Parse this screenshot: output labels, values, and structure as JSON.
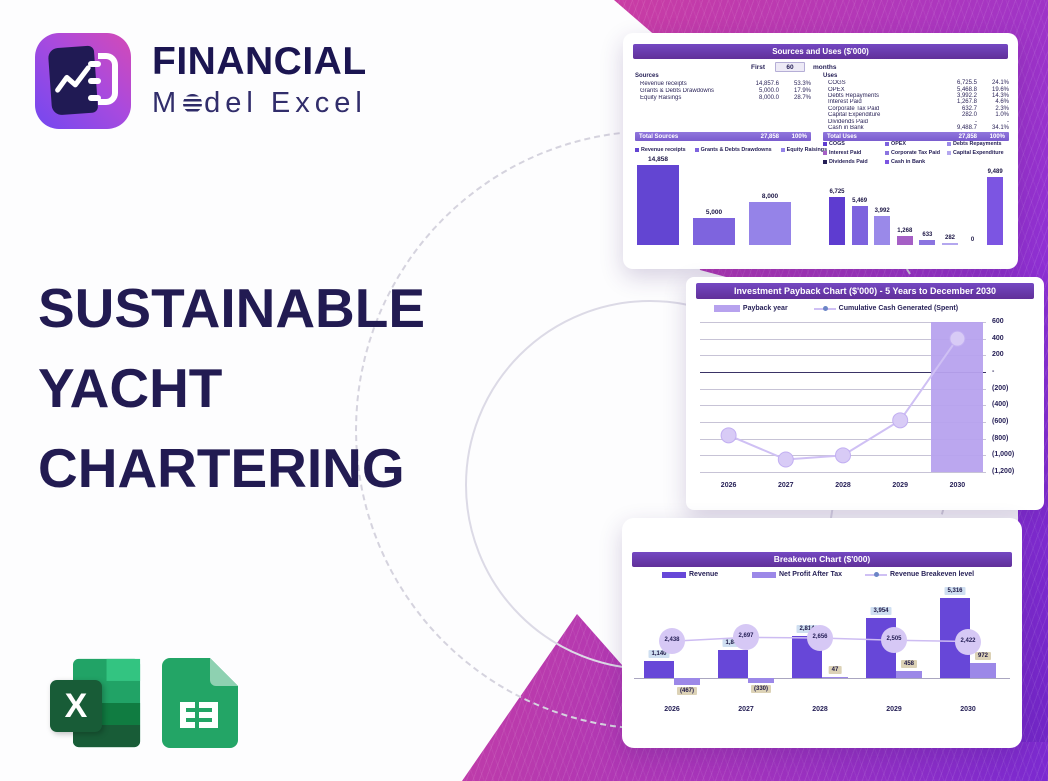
{
  "brand": {
    "title": "FINANCIAL",
    "subtitle_pre": "M",
    "subtitle_post": "del Excel"
  },
  "hero": {
    "lines": [
      "SUSTAINABLE",
      "YACHT",
      "CHARTERING"
    ]
  },
  "file_badges": {
    "excel_letter": "X"
  },
  "sources_uses": {
    "title": "Sources and Uses ($'000)",
    "period": {
      "pre": "First",
      "value": "60",
      "post": "months"
    },
    "sources": {
      "header": "Sources",
      "rows": [
        {
          "label": "Revenue receipts",
          "value": "14,857.6",
          "pct": "53.3%"
        },
        {
          "label": "Grants & Debts Drawdowns",
          "value": "5,000.0",
          "pct": "17.9%"
        },
        {
          "label": "Equity Raisings",
          "value": "8,000.0",
          "pct": "28.7%"
        }
      ],
      "total": {
        "label": "Total Sources",
        "value": "27,858",
        "pct": "100%"
      }
    },
    "uses": {
      "header": "Uses",
      "rows": [
        {
          "label": "COGS",
          "value": "6,725.5",
          "pct": "24.1%"
        },
        {
          "label": "OPEX",
          "value": "5,468.8",
          "pct": "19.6%"
        },
        {
          "label": "Debts Repayments",
          "value": "3,992.2",
          "pct": "14.3%"
        },
        {
          "label": "Interest Paid",
          "value": "1,267.8",
          "pct": "4.6%"
        },
        {
          "label": "Corporate Tax Paid",
          "value": "632.7",
          "pct": "2.3%"
        },
        {
          "label": "Capital Expenditure",
          "value": "282.0",
          "pct": "1.0%"
        },
        {
          "label": "Dividends Paid",
          "value": "-",
          "pct": "-"
        },
        {
          "label": "Cash in Bank",
          "value": "9,488.7",
          "pct": "34.1%"
        }
      ],
      "total": {
        "label": "Total Uses",
        "value": "27,858",
        "pct": "100%"
      }
    }
  },
  "chart_data": [
    {
      "id": "sources-bars",
      "type": "bar",
      "title": "",
      "categories": [
        "Revenue receipts",
        "Grants & Debts Drawdowns",
        "Equity Raisings"
      ],
      "values": [
        14858,
        5000,
        8000
      ],
      "labels": [
        "14,858",
        "5,000",
        "8,000"
      ],
      "colors": [
        "#6345d2",
        "#7e64de",
        "#9583e8"
      ],
      "legend_position": "top"
    },
    {
      "id": "uses-bars",
      "type": "bar",
      "title": "",
      "categories": [
        "COGS",
        "OPEX",
        "Debts Repayments",
        "Interest Paid",
        "Corporate Tax Paid",
        "Capital Expenditure",
        "Dividends Paid",
        "Cash in Bank"
      ],
      "values": [
        6725,
        5469,
        3992,
        1268,
        633,
        282,
        0,
        9489
      ],
      "labels": [
        "6,725",
        "5,469",
        "3,992",
        "1,268",
        "633",
        "282",
        "0",
        "9,489"
      ],
      "colors": [
        "#5e3cd0",
        "#7d63de",
        "#9a89e9",
        "#a55fc5",
        "#8b74e0",
        "#b4a7ef",
        "#241e55",
        "#7c55e2"
      ],
      "legend_position": "top"
    },
    {
      "id": "payback",
      "type": "combo",
      "title": "Investment Payback Chart ($'000) - 5 Years to December 2030",
      "categories": [
        "2026",
        "2027",
        "2028",
        "2029",
        "2030"
      ],
      "ylim": [
        -1200,
        600
      ],
      "y_ticks": [
        "600",
        "400",
        "200",
        "-",
        "(200)",
        "(400)",
        "(600)",
        "(800)",
        "(1,000)",
        "(1,200)"
      ],
      "grid": true,
      "legend_position": "top",
      "series": [
        {
          "name": "Payback year",
          "type": "bar",
          "highlight_index": 4,
          "color": "#b7a2ee"
        },
        {
          "name": "Cumulative Cash Generated (Spent)",
          "type": "line",
          "values": [
            -760,
            -1050,
            -1000,
            -580,
            400
          ],
          "color": "#cfc0f4",
          "marker_color": "#d8cbf6"
        }
      ]
    },
    {
      "id": "breakeven",
      "type": "combo",
      "title": "Breakeven Chart ($'000)",
      "categories": [
        "2026",
        "2027",
        "2028",
        "2029",
        "2030"
      ],
      "legend_position": "top",
      "series": [
        {
          "name": "Revenue",
          "type": "bar",
          "values": [
            1140,
            1848,
            2814,
            3954,
            5316
          ],
          "labels": [
            "1,140",
            "1,848",
            "2,814",
            "3,954",
            "5,316"
          ],
          "color": "#6747d8",
          "label_bg": "#cfdff1"
        },
        {
          "name": "Net Profit After Tax",
          "type": "bar",
          "values": [
            -467,
            -330,
            47,
            458,
            972
          ],
          "labels": [
            "(467)",
            "(330)",
            "47",
            "458",
            "972"
          ],
          "color": "#9c88e8",
          "label_bg": "#dcd2b6"
        },
        {
          "name": "Revenue Breakeven level",
          "type": "line",
          "values": [
            2438,
            2697,
            2656,
            2505,
            2422
          ],
          "labels": [
            "2,438",
            "2,697",
            "2,656",
            "2,505",
            "2,422"
          ],
          "color": "#cdbcf2",
          "marker_color": "#d6c8f5"
        }
      ]
    }
  ]
}
